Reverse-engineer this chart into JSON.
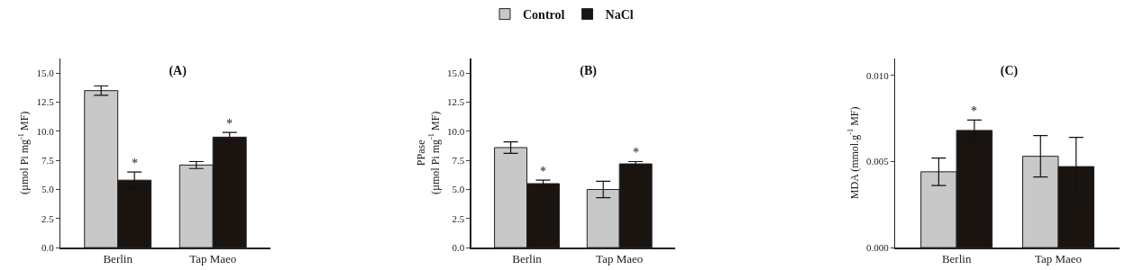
{
  "chart_data": [
    {
      "type": "bar",
      "title": "(A)",
      "ylabel": "(µmol Pi mg$^{-1}$ MF)",
      "categories": [
        "Berlin",
        "Tap Maeo"
      ],
      "ylim": [
        0,
        16.3
      ],
      "yticks": [
        {
          "value": 0,
          "label": "0.0"
        },
        {
          "value": 2.5,
          "label": "2.5"
        },
        {
          "value": 5,
          "label": "5.0"
        },
        {
          "value": 7.5,
          "label": "7.5"
        },
        {
          "value": 10,
          "label": "10.0"
        },
        {
          "value": 12.5,
          "label": "12.5"
        },
        {
          "value": 15,
          "label": "15.0"
        }
      ],
      "grid": false,
      "legend": "top",
      "series": [
        {
          "name": "Control",
          "color": "#c8c8c8",
          "values": [
            13.5,
            7.1
          ],
          "errors": [
            0.4,
            0.3
          ]
        },
        {
          "name": "NaCl",
          "color": "#1a1410",
          "values": [
            5.8,
            9.5
          ],
          "errors": [
            0.7,
            0.4
          ]
        }
      ],
      "annotations": [
        {
          "text": "*",
          "x": "Berlin",
          "y": 5.8
        },
        {
          "text": "*",
          "x": "Tap Maeo",
          "y": 9.5
        }
      ]
    },
    {
      "type": "bar",
      "title": "(B)",
      "ylabel": "PPase\n(µmol Pi mg$^{-1}$ MF)",
      "categories": [
        "Berlin",
        "Tap Maeo"
      ],
      "ylim": [
        0,
        16.3
      ],
      "yticks": [
        {
          "value": 0,
          "label": "0.0"
        },
        {
          "value": 2.5,
          "label": "2.5"
        },
        {
          "value": 5,
          "label": "5.0"
        },
        {
          "value": 7.5,
          "label": "7.5"
        },
        {
          "value": 10,
          "label": "10.0"
        },
        {
          "value": 12.5,
          "label": "12.5"
        },
        {
          "value": 15,
          "label": "15.0"
        }
      ],
      "grid": false,
      "series": [
        {
          "color": "#c8c8c8",
          "values": [
            8.6,
            5.0
          ],
          "errors": [
            0.5,
            0.7
          ]
        },
        {
          "color": "#1a1410",
          "values": [
            5.5,
            7.2
          ],
          "errors": [
            0.3,
            0.2
          ]
        }
      ],
      "annotations": [
        {
          "text": "*",
          "x": "Berlin",
          "y": 5.5
        },
        {
          "text": "*",
          "x": "Tap Maeo",
          "y": 7.2
        }
      ]
    },
    {
      "type": "bar",
      "title": "(C)",
      "ylabel": "MDA (mmol.g$^{-1}$ MF)",
      "categories": [
        "Berlin",
        "Tap Maeo"
      ],
      "ylim": [
        0,
        0.011
      ],
      "yticks": [
        {
          "value": 0,
          "label": "0.000"
        },
        {
          "value": 0.005,
          "label": "0.005"
        },
        {
          "value": 0.01,
          "label": "0.010"
        }
      ],
      "grid": false,
      "series": [
        {
          "color": "#c8c8c8",
          "values": [
            0.0044,
            0.0053
          ],
          "errors": [
            0.0008,
            0.0012
          ]
        },
        {
          "color": "#1a1410",
          "values": [
            0.0068,
            0.0047
          ],
          "errors": [
            0.0006,
            0.0017
          ]
        }
      ],
      "annotations": [
        {
          "text": "*",
          "x": "Berlin",
          "y": 0.0068
        }
      ]
    }
  ]
}
